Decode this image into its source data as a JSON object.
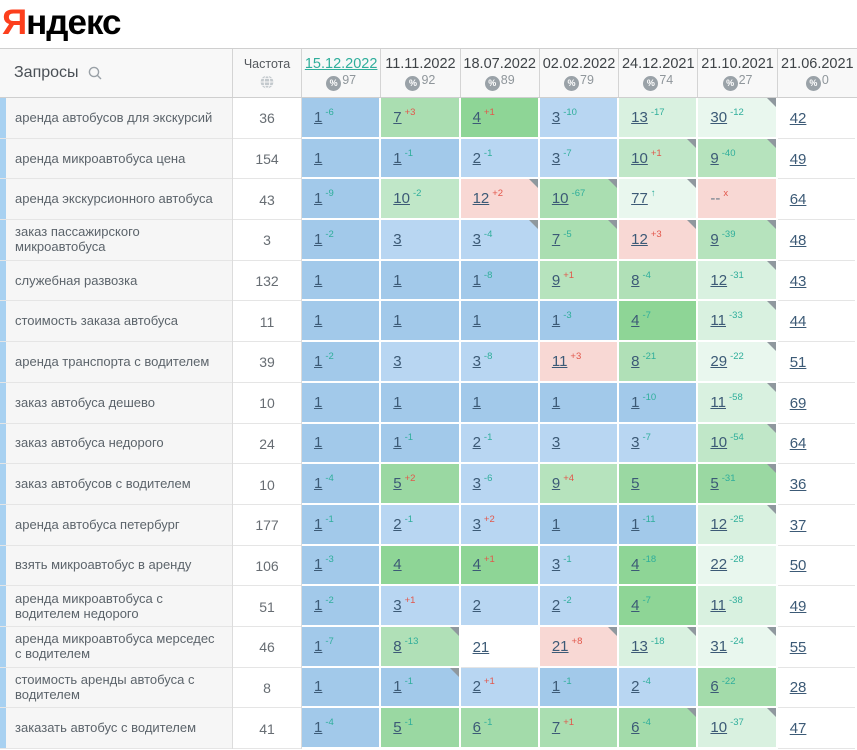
{
  "logo": {
    "ya": "Я",
    "rest": "ндекс"
  },
  "colors": {
    "change_improve": "#2fae9b",
    "change_decline": "#e2574b",
    "position_link": "#3c5a76",
    "row_marker_blue": "#a8d1f1",
    "logo_red": "#fc3f1d"
  },
  "palette": {
    "b1": "#a2c9ea",
    "b2": "#b8d6f2",
    "g4": "#8ed596",
    "g5": "#9ad8a2",
    "g6": "#a3dbaa",
    "g7": "#aadeb1",
    "g8": "#b0e0b7",
    "g9": "#b6e3bd",
    "g10": "#c0e7c8",
    "p1": "#d9f1e0",
    "p2": "#e9f7ee",
    "pink": "#f8d8d4",
    "w": "#ffffff"
  },
  "table": {
    "queries_header": "Запросы",
    "frequency_header": "Частота",
    "dates": [
      {
        "d": "15.12.2022",
        "pct": "97",
        "active": true
      },
      {
        "d": "11.11.2022",
        "pct": "92",
        "active": false
      },
      {
        "d": "18.07.2022",
        "pct": "89",
        "active": false
      },
      {
        "d": "02.02.2022",
        "pct": "79",
        "active": false
      },
      {
        "d": "24.12.2021",
        "pct": "74",
        "active": false
      },
      {
        "d": "21.10.2021",
        "pct": "27",
        "active": false
      },
      {
        "d": "21.06.2021",
        "pct": "0",
        "active": false
      }
    ],
    "rows": [
      {
        "q": "аренда автобусов для экскурсий",
        "f": "36",
        "cells": [
          {
            "p": "1",
            "c": "-6",
            "t": "b1",
            "n": false
          },
          {
            "p": "7",
            "c": "+3",
            "t": "g7",
            "n": false
          },
          {
            "p": "4",
            "c": "+1",
            "t": "g4",
            "n": false
          },
          {
            "p": "3",
            "c": "-10",
            "t": "b2",
            "n": false
          },
          {
            "p": "13",
            "c": "-17",
            "t": "p1",
            "n": false
          },
          {
            "p": "30",
            "c": "-12",
            "t": "p2",
            "n": true
          },
          {
            "p": "42",
            "c": "",
            "t": "w",
            "n": false
          }
        ]
      },
      {
        "q": "аренда микроавтобуса цена",
        "f": "154",
        "cells": [
          {
            "p": "1",
            "c": "",
            "t": "b1",
            "n": false
          },
          {
            "p": "1",
            "c": "-1",
            "t": "b1",
            "n": false
          },
          {
            "p": "2",
            "c": "-1",
            "t": "b2",
            "n": false
          },
          {
            "p": "3",
            "c": "-7",
            "t": "b2",
            "n": false
          },
          {
            "p": "10",
            "c": "+1",
            "t": "g10",
            "n": true
          },
          {
            "p": "9",
            "c": "-40",
            "t": "g9",
            "n": true
          },
          {
            "p": "49",
            "c": "",
            "t": "w",
            "n": false
          }
        ]
      },
      {
        "q": "аренда экскурсионного автобуса",
        "f": "43",
        "cells": [
          {
            "p": "1",
            "c": "-9",
            "t": "b1",
            "n": false
          },
          {
            "p": "10",
            "c": "-2",
            "t": "g10",
            "n": false
          },
          {
            "p": "12",
            "c": "+2",
            "t": "pink",
            "n": true
          },
          {
            "p": "10",
            "c": "-67",
            "t": "g7",
            "n": true
          },
          {
            "p": "77",
            "c": "↑",
            "t": "p2",
            "n": true
          },
          {
            "p": "--",
            "c": "x",
            "t": "pink",
            "n": false
          },
          {
            "p": "64",
            "c": "",
            "t": "w",
            "n": false
          }
        ]
      },
      {
        "q": "заказ пассажирского микроавтобуса",
        "f": "3",
        "cells": [
          {
            "p": "1",
            "c": "-2",
            "t": "b1",
            "n": false
          },
          {
            "p": "3",
            "c": "",
            "t": "b2",
            "n": false
          },
          {
            "p": "3",
            "c": "-4",
            "t": "b2",
            "n": true
          },
          {
            "p": "7",
            "c": "-5",
            "t": "g7",
            "n": true
          },
          {
            "p": "12",
            "c": "+3",
            "t": "pink",
            "n": true
          },
          {
            "p": "9",
            "c": "-39",
            "t": "g9",
            "n": true
          },
          {
            "p": "48",
            "c": "",
            "t": "w",
            "n": false
          }
        ]
      },
      {
        "q": "служебная развозка",
        "f": "132",
        "cells": [
          {
            "p": "1",
            "c": "",
            "t": "b1",
            "n": false
          },
          {
            "p": "1",
            "c": "",
            "t": "b1",
            "n": false
          },
          {
            "p": "1",
            "c": "-8",
            "t": "b1",
            "n": false
          },
          {
            "p": "9",
            "c": "+1",
            "t": "g9",
            "n": false
          },
          {
            "p": "8",
            "c": "-4",
            "t": "g8",
            "n": false
          },
          {
            "p": "12",
            "c": "-31",
            "t": "p1",
            "n": true
          },
          {
            "p": "43",
            "c": "",
            "t": "w",
            "n": false
          }
        ]
      },
      {
        "q": "стоимость заказа автобуса",
        "f": "11",
        "cells": [
          {
            "p": "1",
            "c": "",
            "t": "b1",
            "n": false
          },
          {
            "p": "1",
            "c": "",
            "t": "b1",
            "n": false
          },
          {
            "p": "1",
            "c": "",
            "t": "b1",
            "n": false
          },
          {
            "p": "1",
            "c": "-3",
            "t": "b1",
            "n": false
          },
          {
            "p": "4",
            "c": "-7",
            "t": "g4",
            "n": false
          },
          {
            "p": "11",
            "c": "-33",
            "t": "p1",
            "n": true
          },
          {
            "p": "44",
            "c": "",
            "t": "w",
            "n": false
          }
        ]
      },
      {
        "q": "аренда транспорта с водителем",
        "f": "39",
        "cells": [
          {
            "p": "1",
            "c": "-2",
            "t": "b1",
            "n": false
          },
          {
            "p": "3",
            "c": "",
            "t": "b2",
            "n": false
          },
          {
            "p": "3",
            "c": "-8",
            "t": "b2",
            "n": false
          },
          {
            "p": "11",
            "c": "+3",
            "t": "pink",
            "n": false
          },
          {
            "p": "8",
            "c": "-21",
            "t": "g8",
            "n": false
          },
          {
            "p": "29",
            "c": "-22",
            "t": "p2",
            "n": true
          },
          {
            "p": "51",
            "c": "",
            "t": "w",
            "n": false
          }
        ]
      },
      {
        "q": "заказ автобуса дешево",
        "f": "10",
        "cells": [
          {
            "p": "1",
            "c": "",
            "t": "b1",
            "n": false
          },
          {
            "p": "1",
            "c": "",
            "t": "b1",
            "n": false
          },
          {
            "p": "1",
            "c": "",
            "t": "b1",
            "n": false
          },
          {
            "p": "1",
            "c": "",
            "t": "b1",
            "n": false
          },
          {
            "p": "1",
            "c": "-10",
            "t": "b1",
            "n": false
          },
          {
            "p": "11",
            "c": "-58",
            "t": "p1",
            "n": true
          },
          {
            "p": "69",
            "c": "",
            "t": "w",
            "n": false
          }
        ]
      },
      {
        "q": "заказ автобуса недорого",
        "f": "24",
        "cells": [
          {
            "p": "1",
            "c": "",
            "t": "b1",
            "n": false
          },
          {
            "p": "1",
            "c": "-1",
            "t": "b1",
            "n": false
          },
          {
            "p": "2",
            "c": "-1",
            "t": "b2",
            "n": false
          },
          {
            "p": "3",
            "c": "",
            "t": "b2",
            "n": false
          },
          {
            "p": "3",
            "c": "-7",
            "t": "b2",
            "n": false
          },
          {
            "p": "10",
            "c": "-54",
            "t": "g10",
            "n": true
          },
          {
            "p": "64",
            "c": "",
            "t": "w",
            "n": false
          }
        ]
      },
      {
        "q": "заказ автобусов с водителем",
        "f": "10",
        "cells": [
          {
            "p": "1",
            "c": "-4",
            "t": "b1",
            "n": false
          },
          {
            "p": "5",
            "c": "+2",
            "t": "g5",
            "n": false
          },
          {
            "p": "3",
            "c": "-6",
            "t": "b2",
            "n": false
          },
          {
            "p": "9",
            "c": "+4",
            "t": "g9",
            "n": false
          },
          {
            "p": "5",
            "c": "",
            "t": "g5",
            "n": false
          },
          {
            "p": "5",
            "c": "-31",
            "t": "g5",
            "n": true
          },
          {
            "p": "36",
            "c": "",
            "t": "w",
            "n": false
          }
        ]
      },
      {
        "q": "аренда автобуса петербург",
        "f": "177",
        "cells": [
          {
            "p": "1",
            "c": "-1",
            "t": "b1",
            "n": false
          },
          {
            "p": "2",
            "c": "-1",
            "t": "b2",
            "n": false
          },
          {
            "p": "3",
            "c": "+2",
            "t": "b2",
            "n": false
          },
          {
            "p": "1",
            "c": "",
            "t": "b1",
            "n": false
          },
          {
            "p": "1",
            "c": "-11",
            "t": "b1",
            "n": false
          },
          {
            "p": "12",
            "c": "-25",
            "t": "p1",
            "n": true
          },
          {
            "p": "37",
            "c": "",
            "t": "w",
            "n": false
          }
        ]
      },
      {
        "q": "взять микроавтобус в аренду",
        "f": "106",
        "cells": [
          {
            "p": "1",
            "c": "-3",
            "t": "b1",
            "n": false
          },
          {
            "p": "4",
            "c": "",
            "t": "g4",
            "n": false
          },
          {
            "p": "4",
            "c": "+1",
            "t": "g4",
            "n": false
          },
          {
            "p": "3",
            "c": "-1",
            "t": "b2",
            "n": false
          },
          {
            "p": "4",
            "c": "-18",
            "t": "g4",
            "n": false
          },
          {
            "p": "22",
            "c": "-28",
            "t": "p2",
            "n": false
          },
          {
            "p": "50",
            "c": "",
            "t": "w",
            "n": false
          }
        ]
      },
      {
        "q": "аренда микроавтобуса с водителем недорого",
        "f": "51",
        "cells": [
          {
            "p": "1",
            "c": "-2",
            "t": "b1",
            "n": false
          },
          {
            "p": "3",
            "c": "+1",
            "t": "b2",
            "n": false
          },
          {
            "p": "2",
            "c": "",
            "t": "b2",
            "n": false
          },
          {
            "p": "2",
            "c": "-2",
            "t": "b2",
            "n": false
          },
          {
            "p": "4",
            "c": "-7",
            "t": "g4",
            "n": false
          },
          {
            "p": "11",
            "c": "-38",
            "t": "p1",
            "n": false
          },
          {
            "p": "49",
            "c": "",
            "t": "w",
            "n": false
          }
        ]
      },
      {
        "q": "аренда микроавтобуса мерседес с водителем",
        "f": "46",
        "cells": [
          {
            "p": "1",
            "c": "-7",
            "t": "b1",
            "n": false
          },
          {
            "p": "8",
            "c": "-13",
            "t": "g8",
            "n": true
          },
          {
            "p": "21",
            "c": "",
            "t": "w",
            "n": false
          },
          {
            "p": "21",
            "c": "+8",
            "t": "pink",
            "n": true
          },
          {
            "p": "13",
            "c": "-18",
            "t": "p1",
            "n": true
          },
          {
            "p": "31",
            "c": "-24",
            "t": "p2",
            "n": true
          },
          {
            "p": "55",
            "c": "",
            "t": "w",
            "n": false
          }
        ]
      },
      {
        "q": "стоимость аренды автобуса с водителем",
        "f": "8",
        "cells": [
          {
            "p": "1",
            "c": "",
            "t": "b1",
            "n": false
          },
          {
            "p": "1",
            "c": "-1",
            "t": "b1",
            "n": true
          },
          {
            "p": "2",
            "c": "+1",
            "t": "b2",
            "n": false
          },
          {
            "p": "1",
            "c": "-1",
            "t": "b1",
            "n": false
          },
          {
            "p": "2",
            "c": "-4",
            "t": "b2",
            "n": false
          },
          {
            "p": "6",
            "c": "-22",
            "t": "g6",
            "n": false
          },
          {
            "p": "28",
            "c": "",
            "t": "w",
            "n": false
          }
        ]
      },
      {
        "q": "заказать автобус с водителем",
        "f": "41",
        "cells": [
          {
            "p": "1",
            "c": "-4",
            "t": "b1",
            "n": false
          },
          {
            "p": "5",
            "c": "-1",
            "t": "g5",
            "n": false
          },
          {
            "p": "6",
            "c": "-1",
            "t": "g6",
            "n": false
          },
          {
            "p": "7",
            "c": "+1",
            "t": "g7",
            "n": false
          },
          {
            "p": "6",
            "c": "-4",
            "t": "g6",
            "n": true
          },
          {
            "p": "10",
            "c": "-37",
            "t": "p1",
            "n": true
          },
          {
            "p": "47",
            "c": "",
            "t": "w",
            "n": false
          }
        ]
      }
    ]
  }
}
